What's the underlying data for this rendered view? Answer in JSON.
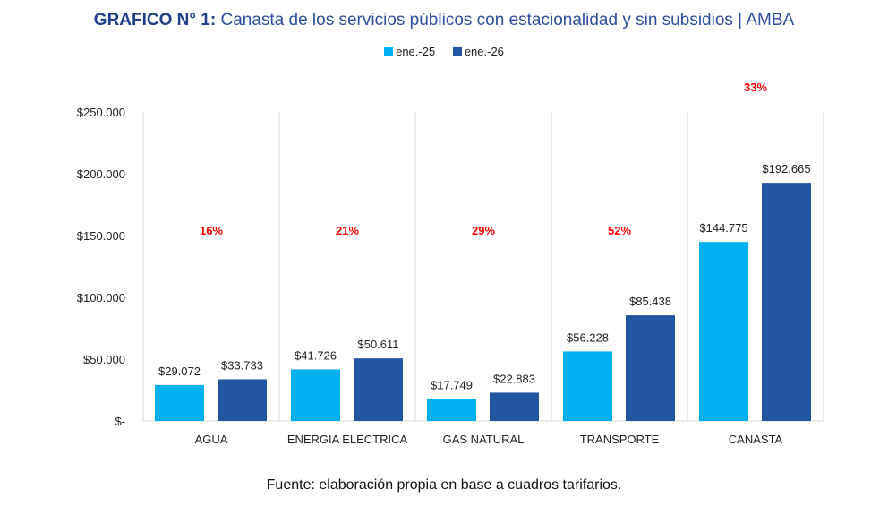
{
  "chart_data": {
    "type": "bar",
    "title_bold": "GRAFICO N° 1:",
    "title": "Canasta de los servicios públicos con estacionalidad y sin subsidios | AMBA",
    "categories": [
      "AGUA",
      "ENERGIA ELECTRICA",
      "GAS NATURAL",
      "TRANSPORTE",
      "CANASTA"
    ],
    "series": [
      {
        "name": "ene.-25",
        "color": "#00b0f0",
        "values": [
          29072,
          41726,
          17749,
          56228,
          144775
        ],
        "labels": [
          "$29.072",
          "$41.726",
          "$17.749",
          "$56.228",
          "$144.775"
        ]
      },
      {
        "name": "ene.-26",
        "color": "#2356a0",
        "values": [
          33733,
          50611,
          22883,
          85438,
          192665
        ],
        "labels": [
          "$33.733",
          "$50.611",
          "$22.883",
          "$85.438",
          "$192.665"
        ]
      }
    ],
    "annotations": [
      "16%",
      "21%",
      "29%",
      "52%",
      "33%"
    ],
    "annotation_color": "#ff0000",
    "ylim": [
      0,
      250000
    ],
    "yticks": [
      0,
      50000,
      100000,
      150000,
      200000,
      250000
    ],
    "ytick_labels": [
      "$-",
      "$50.000",
      "$100.000",
      "$150.000",
      "$200.000",
      "$250.000"
    ],
    "grid": false,
    "legend": "top-center"
  },
  "footnote": "Fuente: elaboración propia en base a cuadros tarifarios."
}
